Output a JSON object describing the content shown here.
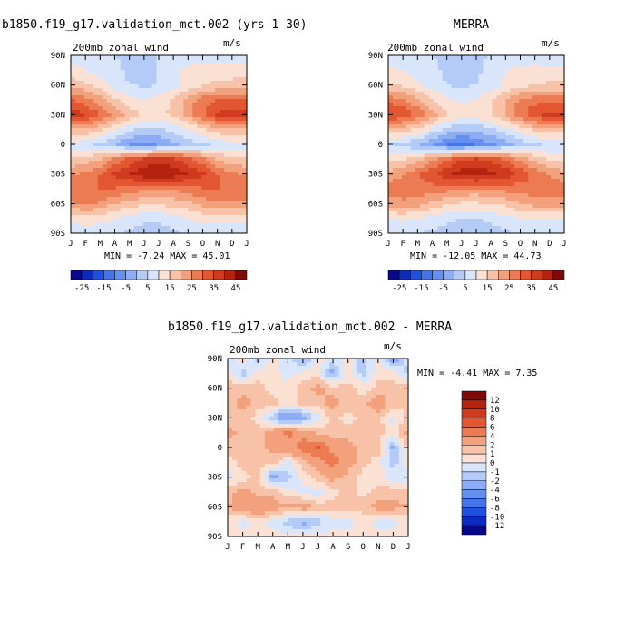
{
  "panels": [
    {
      "id": "model",
      "title": "b1850.f19_g17.validation_mct.002 (yrs 1-30)",
      "subtitle": "200mb zonal wind",
      "units": "m/s",
      "min_max_label": "MIN =   -7.24 MAX =   45.01"
    },
    {
      "id": "obs",
      "title": "MERRA",
      "subtitle": "200mb zonal wind",
      "units": "m/s",
      "min_max_label": "MIN =  -12.05 MAX =   44.73"
    },
    {
      "id": "diff",
      "title": "b1850.f19_g17.validation_mct.002 - MERRA",
      "subtitle": "200mb zonal wind",
      "units": "m/s",
      "min_max_label": "MIN =   -4.41 MAX =    7.35"
    }
  ],
  "colorbar_top": {
    "labels": [
      "-25",
      "-15",
      "-5",
      "5",
      "15",
      "25",
      "35",
      "45"
    ],
    "colors": [
      "#08088c",
      "#0d2ac2",
      "#2150e0",
      "#4473ea",
      "#6690f0",
      "#8cadf5",
      "#b4cbf8",
      "#d9e5fb",
      "#fbe1d4",
      "#f8c2a8",
      "#f3a07c",
      "#ec7a52",
      "#e35632",
      "#d03a1e",
      "#b42210",
      "#800a08"
    ]
  },
  "colorbar_diff": {
    "labels": [
      "12",
      "10",
      "8",
      "6",
      "4",
      "2",
      "1",
      "0",
      "-1",
      "-2",
      "-4",
      "-6",
      "-8",
      "-10",
      "-12"
    ],
    "colors": [
      "#800a08",
      "#b42210",
      "#d03a1e",
      "#e35632",
      "#ec7a52",
      "#f3a07c",
      "#f8c2a8",
      "#fbe1d4",
      "#d9e5fb",
      "#b4cbf8",
      "#8cadf5",
      "#6690f0",
      "#4473ea",
      "#2150e0",
      "#0d2ac2",
      "#08088c"
    ]
  },
  "chart_data": [
    {
      "type": "heatmap",
      "title": "b1850.f19_g17.validation_mct.002 (yrs 1-30)",
      "variable": "200mb zonal wind",
      "units": "m/s",
      "x_categories": [
        "J",
        "F",
        "M",
        "A",
        "M",
        "J",
        "J",
        "A",
        "S",
        "O",
        "N",
        "D",
        "J"
      ],
      "y_ticks": [
        "90N",
        "60N",
        "30N",
        "0",
        "30S",
        "60S",
        "90S"
      ],
      "ylim": [
        -90,
        90
      ],
      "min": -7.24,
      "max": 45.01,
      "levels": [
        -30,
        -25,
        -20,
        -15,
        -10,
        -5,
        0,
        5,
        10,
        15,
        20,
        25,
        30,
        35,
        40,
        45,
        50
      ],
      "lat": [
        90,
        75,
        60,
        45,
        30,
        15,
        0,
        -15,
        -30,
        -45,
        -60,
        -75,
        -90
      ],
      "values": [
        [
          8,
          8,
          6,
          5,
          4,
          4,
          5,
          6,
          6,
          6,
          7,
          8,
          8
        ],
        [
          12,
          10,
          8,
          6,
          4,
          3,
          5,
          8,
          12,
          14,
          13,
          12,
          12
        ],
        [
          18,
          16,
          12,
          8,
          5,
          4,
          5,
          8,
          12,
          14,
          16,
          17,
          18
        ],
        [
          30,
          27,
          22,
          16,
          12,
          10,
          12,
          16,
          22,
          28,
          30,
          30,
          30
        ],
        [
          38,
          36,
          30,
          24,
          18,
          14,
          14,
          16,
          22,
          30,
          36,
          38,
          38
        ],
        [
          20,
          20,
          16,
          10,
          6,
          4,
          4,
          6,
          10,
          14,
          18,
          20,
          20
        ],
        [
          8,
          6,
          4,
          0,
          -5,
          -7,
          -5,
          -1,
          2,
          4,
          6,
          8,
          8
        ],
        [
          16,
          17,
          20,
          26,
          32,
          36,
          38,
          36,
          32,
          26,
          20,
          16,
          16
        ],
        [
          24,
          26,
          30,
          36,
          40,
          44,
          45,
          44,
          40,
          36,
          30,
          26,
          24
        ],
        [
          30,
          30,
          30,
          30,
          28,
          26,
          25,
          26,
          28,
          30,
          30,
          30,
          30
        ],
        [
          24,
          26,
          24,
          20,
          18,
          16,
          16,
          17,
          18,
          22,
          24,
          24,
          24
        ],
        [
          12,
          13,
          12,
          10,
          8,
          6,
          6,
          8,
          10,
          12,
          12,
          12,
          12
        ],
        [
          6,
          6,
          6,
          5,
          4,
          3,
          3,
          4,
          5,
          6,
          6,
          6,
          6
        ]
      ]
    },
    {
      "type": "heatmap",
      "title": "MERRA",
      "variable": "200mb zonal wind",
      "units": "m/s",
      "x_categories": [
        "J",
        "F",
        "M",
        "A",
        "M",
        "J",
        "J",
        "A",
        "S",
        "O",
        "N",
        "D",
        "J"
      ],
      "y_ticks": [
        "90N",
        "60N",
        "30N",
        "0",
        "30S",
        "60S",
        "90S"
      ],
      "ylim": [
        -90,
        90
      ],
      "min": -12.05,
      "max": 44.73,
      "levels": [
        -30,
        -25,
        -20,
        -15,
        -10,
        -5,
        0,
        5,
        10,
        15,
        20,
        25,
        30,
        35,
        40,
        45,
        50
      ],
      "lat": [
        90,
        75,
        60,
        45,
        30,
        15,
        0,
        -15,
        -30,
        -45,
        -60,
        -75,
        -90
      ],
      "values": [
        [
          7,
          7,
          6,
          5,
          4,
          3,
          4,
          5,
          6,
          6,
          7,
          7,
          7
        ],
        [
          11,
          10,
          8,
          6,
          4,
          3,
          4,
          7,
          10,
          12,
          12,
          11,
          11
        ],
        [
          16,
          14,
          11,
          8,
          5,
          4,
          5,
          7,
          11,
          13,
          15,
          16,
          16
        ],
        [
          28,
          26,
          21,
          15,
          11,
          9,
          11,
          15,
          20,
          26,
          28,
          28,
          28
        ],
        [
          36,
          34,
          29,
          22,
          16,
          12,
          13,
          15,
          21,
          28,
          34,
          37,
          36
        ],
        [
          18,
          17,
          14,
          8,
          3,
          1,
          1,
          4,
          8,
          12,
          16,
          18,
          18
        ],
        [
          6,
          3,
          0,
          -5,
          -10,
          -12,
          -10,
          -6,
          -2,
          2,
          4,
          6,
          6
        ],
        [
          14,
          15,
          18,
          24,
          30,
          34,
          36,
          34,
          30,
          24,
          18,
          14,
          14
        ],
        [
          22,
          24,
          29,
          34,
          39,
          43,
          44,
          42,
          38,
          34,
          28,
          24,
          22
        ],
        [
          28,
          28,
          28,
          28,
          27,
          25,
          24,
          25,
          27,
          28,
          28,
          28,
          28
        ],
        [
          22,
          24,
          22,
          19,
          16,
          14,
          14,
          15,
          16,
          20,
          22,
          22,
          22
        ],
        [
          10,
          11,
          10,
          8,
          6,
          5,
          5,
          6,
          8,
          10,
          10,
          10,
          10
        ],
        [
          5,
          5,
          5,
          4,
          3,
          2,
          2,
          3,
          4,
          5,
          5,
          5,
          5
        ]
      ]
    },
    {
      "type": "heatmap",
      "title": "b1850.f19_g17.validation_mct.002 - MERRA",
      "variable": "200mb zonal wind",
      "units": "m/s",
      "x_categories": [
        "J",
        "F",
        "M",
        "A",
        "M",
        "J",
        "J",
        "A",
        "S",
        "O",
        "N",
        "D",
        "J"
      ],
      "y_ticks": [
        "90N",
        "60N",
        "30N",
        "0",
        "30S",
        "60S",
        "90S"
      ],
      "ylim": [
        -90,
        90
      ],
      "min": -4.41,
      "max": 7.35,
      "levels": [
        -14,
        -12,
        -10,
        -8,
        -6,
        -4,
        -2,
        -1,
        0,
        1,
        2,
        4,
        6,
        8,
        10,
        12,
        14
      ],
      "lat": [
        90,
        75,
        60,
        45,
        30,
        15,
        0,
        -15,
        -30,
        -45,
        -60,
        -75,
        -90
      ],
      "values": [
        [
          -0.5,
          0.5,
          -1.5,
          0.5,
          -0.5,
          -2.5,
          0.5,
          -0.5,
          0.5,
          -1.5,
          0.5,
          -3,
          -0.5
        ],
        [
          0.5,
          -1.5,
          0.5,
          0.5,
          -0.5,
          0.5,
          0.5,
          -2.5,
          0.5,
          -1.5,
          0.5,
          0.5,
          -1.5
        ],
        [
          2,
          1.5,
          1.5,
          0.5,
          0.5,
          1.5,
          2.5,
          1.5,
          1.5,
          0.5,
          1.5,
          1.5,
          2
        ],
        [
          1.5,
          2.5,
          1.5,
          1.5,
          0.5,
          1.5,
          1.5,
          2.5,
          1.5,
          1.5,
          3,
          1.5,
          1.5
        ],
        [
          1.5,
          1.5,
          0.5,
          -1.5,
          -4.4,
          -2.5,
          -0.5,
          1.5,
          0.5,
          1.5,
          1.5,
          -0.5,
          1.5
        ],
        [
          2.5,
          1.5,
          1.5,
          3,
          4.5,
          3,
          1.5,
          1.5,
          1.5,
          1.5,
          1.5,
          0.5,
          2.5
        ],
        [
          1.5,
          1.5,
          1.5,
          2.5,
          3,
          5,
          6,
          3,
          2.5,
          1.5,
          1.5,
          -2.5,
          1.5
        ],
        [
          0.5,
          1.5,
          1.5,
          1.5,
          -0.5,
          1.5,
          3,
          5,
          2.5,
          1.5,
          0.5,
          -1.5,
          0.5
        ],
        [
          -0.5,
          0.5,
          1.5,
          -2.5,
          -1.5,
          0.5,
          1.5,
          2.5,
          1.5,
          0.5,
          0.5,
          -0.5,
          -0.5
        ],
        [
          1.5,
          2.5,
          1.5,
          1.5,
          0.5,
          -0.5,
          -0.5,
          0.5,
          1.5,
          0.5,
          1.5,
          1.5,
          1.5
        ],
        [
          2,
          3,
          4,
          3,
          2,
          3,
          1.5,
          1.5,
          1.5,
          1.5,
          2.5,
          2.5,
          2
        ],
        [
          0.5,
          -0.5,
          0.5,
          -0.5,
          -1.5,
          -2.5,
          -1.5,
          -0.5,
          -0.5,
          0.5,
          -0.5,
          -0.5,
          0.5
        ],
        [
          0.5,
          0.5,
          0.5,
          0.5,
          0.5,
          0.5,
          0.5,
          0.5,
          0.5,
          0.5,
          0.5,
          0.5,
          0.5
        ]
      ]
    }
  ]
}
